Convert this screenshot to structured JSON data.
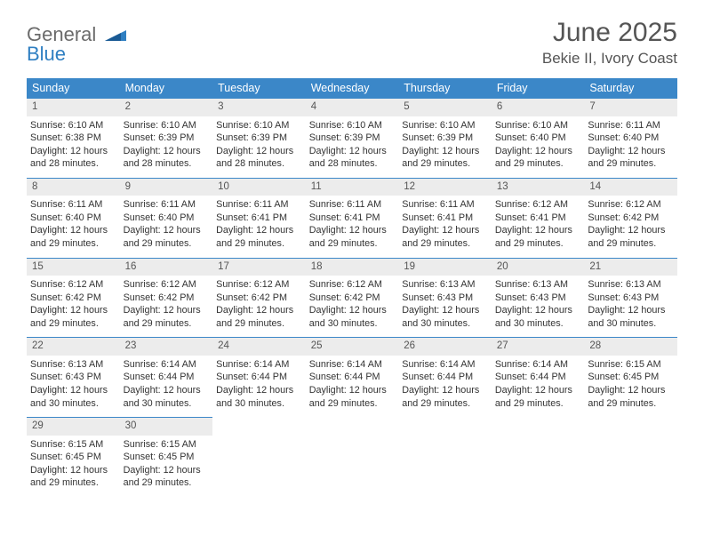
{
  "logo": {
    "line1": "General",
    "line2": "Blue"
  },
  "title": "June 2025",
  "location": "Bekie II, Ivory Coast",
  "colors": {
    "header_bg": "#3b87c8",
    "header_text": "#ffffff",
    "daynum_bg": "#ececec",
    "border": "#3b87c8",
    "title_color": "#555555"
  },
  "daynames": [
    "Sunday",
    "Monday",
    "Tuesday",
    "Wednesday",
    "Thursday",
    "Friday",
    "Saturday"
  ],
  "weeks": [
    [
      {
        "n": "1",
        "sr": "Sunrise: 6:10 AM",
        "ss": "Sunset: 6:38 PM",
        "d1": "Daylight: 12 hours",
        "d2": "and 28 minutes."
      },
      {
        "n": "2",
        "sr": "Sunrise: 6:10 AM",
        "ss": "Sunset: 6:39 PM",
        "d1": "Daylight: 12 hours",
        "d2": "and 28 minutes."
      },
      {
        "n": "3",
        "sr": "Sunrise: 6:10 AM",
        "ss": "Sunset: 6:39 PM",
        "d1": "Daylight: 12 hours",
        "d2": "and 28 minutes."
      },
      {
        "n": "4",
        "sr": "Sunrise: 6:10 AM",
        "ss": "Sunset: 6:39 PM",
        "d1": "Daylight: 12 hours",
        "d2": "and 28 minutes."
      },
      {
        "n": "5",
        "sr": "Sunrise: 6:10 AM",
        "ss": "Sunset: 6:39 PM",
        "d1": "Daylight: 12 hours",
        "d2": "and 29 minutes."
      },
      {
        "n": "6",
        "sr": "Sunrise: 6:10 AM",
        "ss": "Sunset: 6:40 PM",
        "d1": "Daylight: 12 hours",
        "d2": "and 29 minutes."
      },
      {
        "n": "7",
        "sr": "Sunrise: 6:11 AM",
        "ss": "Sunset: 6:40 PM",
        "d1": "Daylight: 12 hours",
        "d2": "and 29 minutes."
      }
    ],
    [
      {
        "n": "8",
        "sr": "Sunrise: 6:11 AM",
        "ss": "Sunset: 6:40 PM",
        "d1": "Daylight: 12 hours",
        "d2": "and 29 minutes."
      },
      {
        "n": "9",
        "sr": "Sunrise: 6:11 AM",
        "ss": "Sunset: 6:40 PM",
        "d1": "Daylight: 12 hours",
        "d2": "and 29 minutes."
      },
      {
        "n": "10",
        "sr": "Sunrise: 6:11 AM",
        "ss": "Sunset: 6:41 PM",
        "d1": "Daylight: 12 hours",
        "d2": "and 29 minutes."
      },
      {
        "n": "11",
        "sr": "Sunrise: 6:11 AM",
        "ss": "Sunset: 6:41 PM",
        "d1": "Daylight: 12 hours",
        "d2": "and 29 minutes."
      },
      {
        "n": "12",
        "sr": "Sunrise: 6:11 AM",
        "ss": "Sunset: 6:41 PM",
        "d1": "Daylight: 12 hours",
        "d2": "and 29 minutes."
      },
      {
        "n": "13",
        "sr": "Sunrise: 6:12 AM",
        "ss": "Sunset: 6:41 PM",
        "d1": "Daylight: 12 hours",
        "d2": "and 29 minutes."
      },
      {
        "n": "14",
        "sr": "Sunrise: 6:12 AM",
        "ss": "Sunset: 6:42 PM",
        "d1": "Daylight: 12 hours",
        "d2": "and 29 minutes."
      }
    ],
    [
      {
        "n": "15",
        "sr": "Sunrise: 6:12 AM",
        "ss": "Sunset: 6:42 PM",
        "d1": "Daylight: 12 hours",
        "d2": "and 29 minutes."
      },
      {
        "n": "16",
        "sr": "Sunrise: 6:12 AM",
        "ss": "Sunset: 6:42 PM",
        "d1": "Daylight: 12 hours",
        "d2": "and 29 minutes."
      },
      {
        "n": "17",
        "sr": "Sunrise: 6:12 AM",
        "ss": "Sunset: 6:42 PM",
        "d1": "Daylight: 12 hours",
        "d2": "and 29 minutes."
      },
      {
        "n": "18",
        "sr": "Sunrise: 6:12 AM",
        "ss": "Sunset: 6:42 PM",
        "d1": "Daylight: 12 hours",
        "d2": "and 30 minutes."
      },
      {
        "n": "19",
        "sr": "Sunrise: 6:13 AM",
        "ss": "Sunset: 6:43 PM",
        "d1": "Daylight: 12 hours",
        "d2": "and 30 minutes."
      },
      {
        "n": "20",
        "sr": "Sunrise: 6:13 AM",
        "ss": "Sunset: 6:43 PM",
        "d1": "Daylight: 12 hours",
        "d2": "and 30 minutes."
      },
      {
        "n": "21",
        "sr": "Sunrise: 6:13 AM",
        "ss": "Sunset: 6:43 PM",
        "d1": "Daylight: 12 hours",
        "d2": "and 30 minutes."
      }
    ],
    [
      {
        "n": "22",
        "sr": "Sunrise: 6:13 AM",
        "ss": "Sunset: 6:43 PM",
        "d1": "Daylight: 12 hours",
        "d2": "and 30 minutes."
      },
      {
        "n": "23",
        "sr": "Sunrise: 6:14 AM",
        "ss": "Sunset: 6:44 PM",
        "d1": "Daylight: 12 hours",
        "d2": "and 30 minutes."
      },
      {
        "n": "24",
        "sr": "Sunrise: 6:14 AM",
        "ss": "Sunset: 6:44 PM",
        "d1": "Daylight: 12 hours",
        "d2": "and 30 minutes."
      },
      {
        "n": "25",
        "sr": "Sunrise: 6:14 AM",
        "ss": "Sunset: 6:44 PM",
        "d1": "Daylight: 12 hours",
        "d2": "and 29 minutes."
      },
      {
        "n": "26",
        "sr": "Sunrise: 6:14 AM",
        "ss": "Sunset: 6:44 PM",
        "d1": "Daylight: 12 hours",
        "d2": "and 29 minutes."
      },
      {
        "n": "27",
        "sr": "Sunrise: 6:14 AM",
        "ss": "Sunset: 6:44 PM",
        "d1": "Daylight: 12 hours",
        "d2": "and 29 minutes."
      },
      {
        "n": "28",
        "sr": "Sunrise: 6:15 AM",
        "ss": "Sunset: 6:45 PM",
        "d1": "Daylight: 12 hours",
        "d2": "and 29 minutes."
      }
    ],
    [
      {
        "n": "29",
        "sr": "Sunrise: 6:15 AM",
        "ss": "Sunset: 6:45 PM",
        "d1": "Daylight: 12 hours",
        "d2": "and 29 minutes."
      },
      {
        "n": "30",
        "sr": "Sunrise: 6:15 AM",
        "ss": "Sunset: 6:45 PM",
        "d1": "Daylight: 12 hours",
        "d2": "and 29 minutes."
      },
      null,
      null,
      null,
      null,
      null
    ]
  ]
}
